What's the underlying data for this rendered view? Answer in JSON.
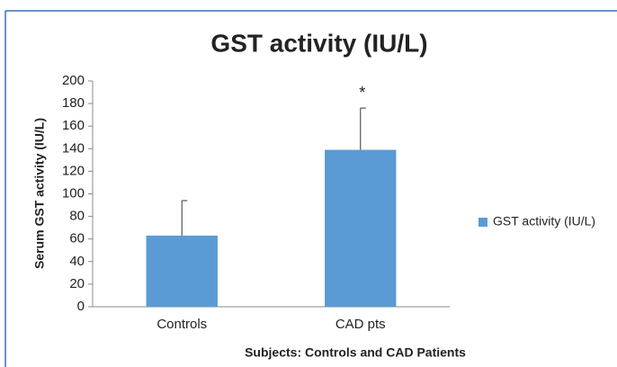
{
  "chart_data": {
    "type": "bar",
    "title": "GST activity (IU/L)",
    "x_label": "Subjects: Controls and CAD Patients",
    "y_label": "Serum GST activity (IU/L)",
    "categories": [
      "Controls",
      "CAD pts"
    ],
    "series": [
      {
        "name": "GST activity (IU/L)",
        "color": "#5b9bd5",
        "values": [
          63,
          139
        ],
        "errors": [
          31,
          37
        ]
      }
    ],
    "annotations": [
      {
        "text": "*",
        "category": "CAD pts"
      }
    ],
    "ylim": [
      0,
      200
    ],
    "yticks": [
      0,
      20,
      40,
      60,
      80,
      100,
      120,
      140,
      160,
      180,
      200
    ],
    "grid": false,
    "legend": "right"
  }
}
